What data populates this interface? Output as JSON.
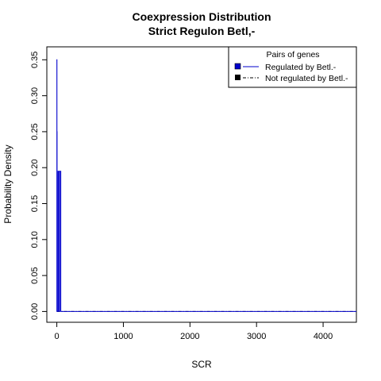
{
  "chart_data": {
    "type": "line",
    "title": "Coexpression Distribution",
    "subtitle": "Strict Regulon Betl,-",
    "xlabel": "SCR",
    "ylabel": "Probability Density",
    "xlim": [
      -150,
      4500
    ],
    "ylim": [
      -0.015,
      0.368
    ],
    "x_ticks": [
      0,
      1000,
      2000,
      3000,
      4000
    ],
    "x_tick_labels": [
      "0",
      "1000",
      "2000",
      "3000",
      "4000"
    ],
    "y_ticks": [
      0.0,
      0.05,
      0.1,
      0.15,
      0.2,
      0.25,
      0.3,
      0.35
    ],
    "y_tick_labels": [
      "0.00",
      "0.05",
      "0.10",
      "0.15",
      "0.20",
      "0.25",
      "0.30",
      "0.35"
    ],
    "grid": false,
    "legend": {
      "title": "Pairs of genes",
      "placement": "top-right",
      "entries": [
        "Regulated by  Betl.-",
        "Not regulated by  Betl.-"
      ]
    },
    "series": [
      {
        "name": "Regulated by  Betl.-",
        "color": "#0000cc",
        "line_style": "solid",
        "x": [
          0,
          1,
          1,
          2,
          2,
          3,
          3,
          4,
          4,
          18,
          18,
          20,
          20,
          25,
          25,
          40,
          40,
          45,
          45,
          60,
          60,
          4500
        ],
        "y": [
          0,
          0,
          0.35,
          0.35,
          0,
          0,
          0.25,
          0.25,
          0,
          0,
          0.195,
          0.195,
          0,
          0,
          0.195,
          0.195,
          0,
          0,
          0.195,
          0.195,
          0,
          0
        ]
      },
      {
        "name": "Not regulated by  Betl.-",
        "color": "#000000",
        "line_style": "dashed",
        "x": [
          0,
          4500
        ],
        "y": [
          0,
          0
        ]
      }
    ]
  }
}
